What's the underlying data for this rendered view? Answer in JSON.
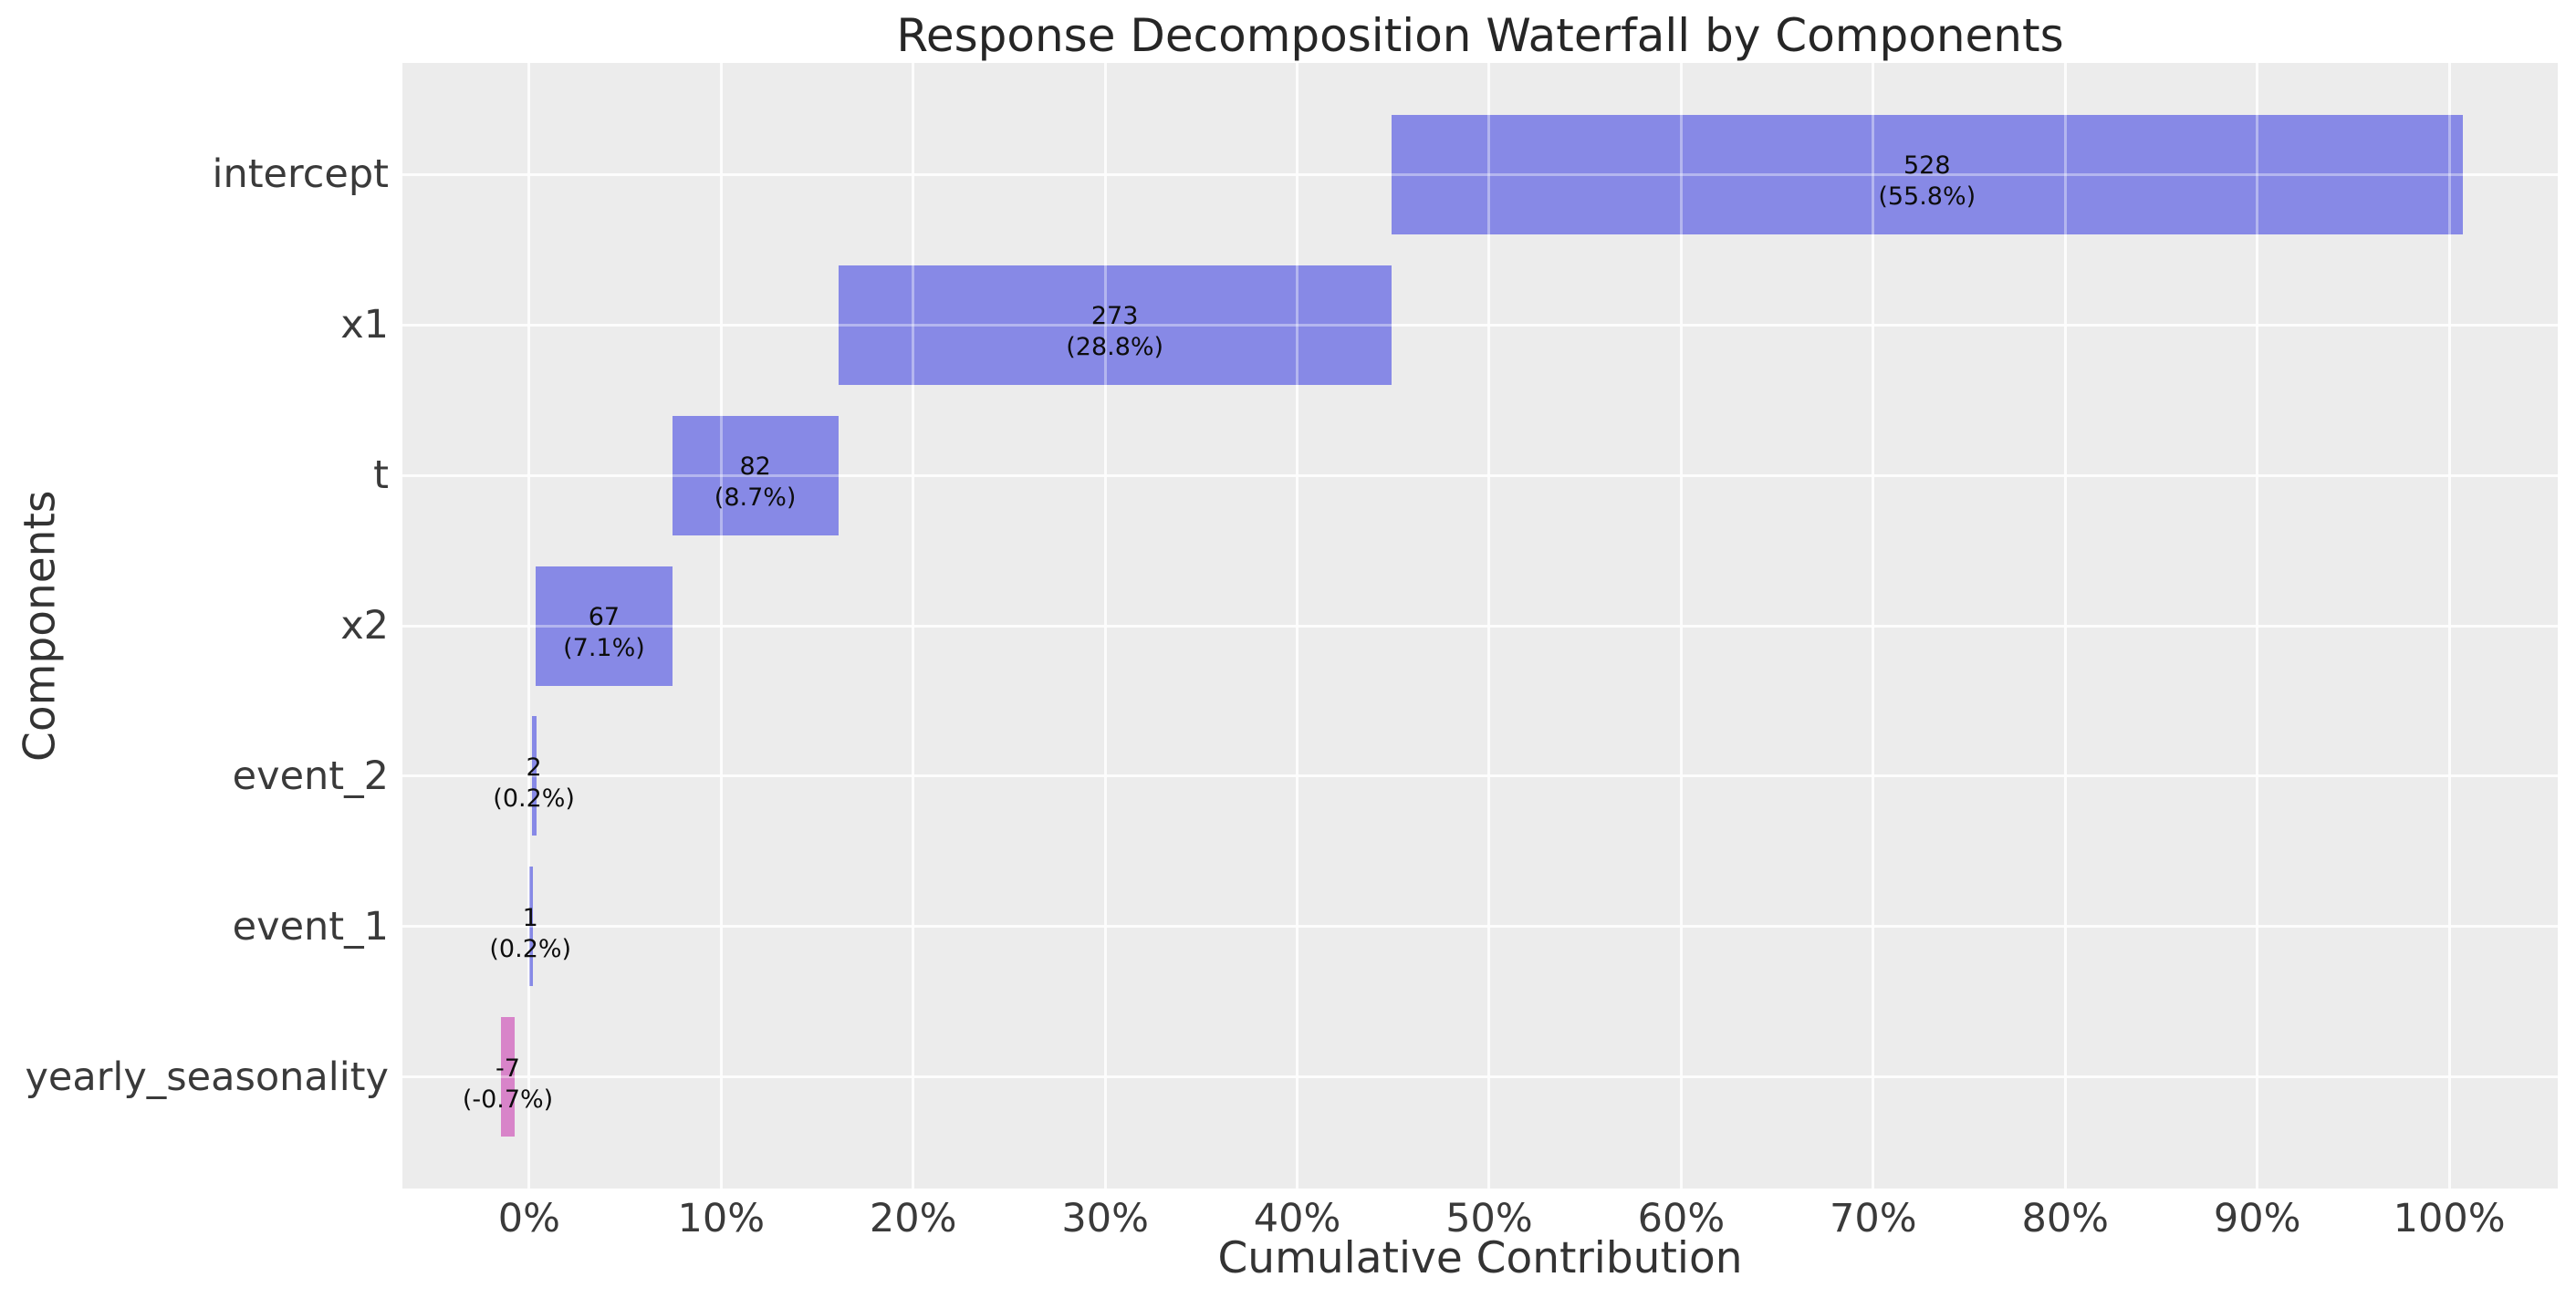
{
  "figure": {
    "title": "Response Decomposition Waterfall by Components",
    "xlabel": "Cumulative Contribution",
    "ylabel": "Components"
  },
  "chart_data": {
    "type": "bar",
    "variant": "horizontal-waterfall",
    "title": "Response Decomposition Waterfall by Components",
    "xlabel": "Cumulative Contribution",
    "ylabel": "Components",
    "grid": true,
    "legend": "none",
    "plot_bg": "#ececec",
    "grid_color": "#ffffff",
    "positive_color": "#8789e6",
    "negative_color": "#d884c9",
    "xlim": [
      -6.6,
      105.65
    ],
    "x_ticks": [
      {
        "value": 0,
        "label": "0%"
      },
      {
        "value": 10,
        "label": "10%"
      },
      {
        "value": 20,
        "label": "20%"
      },
      {
        "value": 30,
        "label": "30%"
      },
      {
        "value": 40,
        "label": "40%"
      },
      {
        "value": 50,
        "label": "50%"
      },
      {
        "value": 60,
        "label": "60%"
      },
      {
        "value": 70,
        "label": "70%"
      },
      {
        "value": 80,
        "label": "80%"
      },
      {
        "value": 90,
        "label": "90%"
      },
      {
        "value": 100,
        "label": "100%"
      }
    ],
    "categories": [
      "intercept",
      "x1",
      "t",
      "x2",
      "event_2",
      "event_1",
      "yearly_seasonality"
    ],
    "bars": [
      {
        "component": "intercept",
        "value": "528",
        "pct": "(55.8%)",
        "start": 44.9,
        "end": 100.7,
        "sign": "positive"
      },
      {
        "component": "x1",
        "value": "273",
        "pct": "(28.8%)",
        "start": 16.1,
        "end": 44.9,
        "sign": "positive"
      },
      {
        "component": "t",
        "value": "82",
        "pct": "(8.7%)",
        "start": 7.45,
        "end": 16.1,
        "sign": "positive"
      },
      {
        "component": "x2",
        "value": "67",
        "pct": "(7.1%)",
        "start": 0.35,
        "end": 7.45,
        "sign": "positive"
      },
      {
        "component": "event_2",
        "value": "2",
        "pct": "(0.2%)",
        "start": 0.13,
        "end": 0.37,
        "sign": "positive"
      },
      {
        "component": "event_1",
        "value": "1",
        "pct": "(0.2%)",
        "start": 0.0,
        "end": 0.13,
        "sign": "positive"
      },
      {
        "component": "yearly_seasonality",
        "value": "-7",
        "pct": "(-0.7%)",
        "start": -1.46,
        "end": -0.76,
        "sign": "negative"
      }
    ]
  }
}
